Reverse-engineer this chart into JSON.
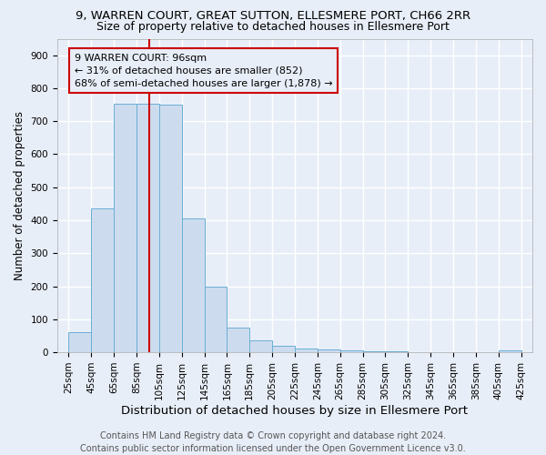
{
  "title": "9, WARREN COURT, GREAT SUTTON, ELLESMERE PORT, CH66 2RR",
  "subtitle": "Size of property relative to detached houses in Ellesmere Port",
  "xlabel": "Distribution of detached houses by size in Ellesmere Port",
  "ylabel": "Number of detached properties",
  "property_size": 96,
  "property_label": "9 WARREN COURT: 96sqm",
  "annotation_line1": "← 31% of detached houses are smaller (852)",
  "annotation_line2": "68% of semi-detached houses are larger (1,878) →",
  "bin_edges": [
    25,
    45,
    65,
    85,
    105,
    125,
    145,
    165,
    185,
    205,
    225,
    245,
    265,
    285,
    305,
    325,
    345,
    365,
    385,
    405,
    425
  ],
  "bar_values": [
    60,
    435,
    752,
    752,
    750,
    405,
    198,
    75,
    35,
    20,
    12,
    8,
    5,
    3,
    2,
    1,
    1,
    0,
    0,
    5
  ],
  "bar_color": "#ccdcee",
  "bar_edge_color": "#6baed6",
  "red_line_color": "#cc0000",
  "annotation_box_color": "#cc0000",
  "background_color": "#e8eef8",
  "grid_color": "#ffffff",
  "ylim": [
    0,
    950
  ],
  "yticks": [
    0,
    100,
    200,
    300,
    400,
    500,
    600,
    700,
    800,
    900
  ],
  "footer_line1": "Contains HM Land Registry data © Crown copyright and database right 2024.",
  "footer_line2": "Contains public sector information licensed under the Open Government Licence v3.0.",
  "title_fontsize": 9.5,
  "subtitle_fontsize": 9,
  "xlabel_fontsize": 9.5,
  "ylabel_fontsize": 8.5,
  "tick_fontsize": 7.5,
  "annotation_fontsize": 8,
  "footer_fontsize": 7
}
